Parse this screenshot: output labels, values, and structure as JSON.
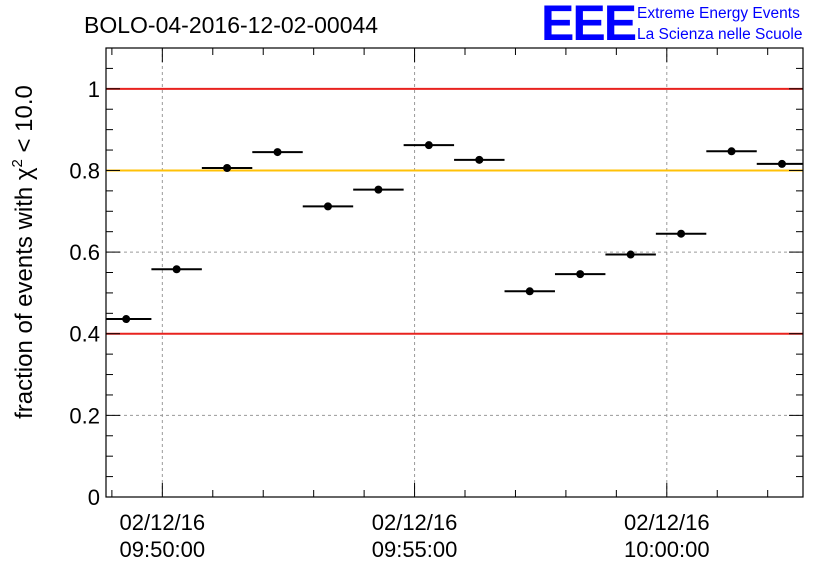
{
  "title": "BOLO-04-2016-12-02-00044",
  "logo": {
    "mark": "EEE",
    "line1": "Extreme Energy Events",
    "line2": "La Scienza nelle Scuole",
    "color": "#0000ff"
  },
  "colors": {
    "threshold_red": "#e8231f",
    "threshold_yellow": "#ffc107",
    "grid": "#9a9a9a",
    "marker": "#000000"
  },
  "chart_data": {
    "type": "scatter",
    "ylabel_main": "fraction of events with χ",
    "ylabel_sup": "2",
    "ylabel_tail": " < 10.0",
    "xlabel": "",
    "ylim": [
      0,
      1.1
    ],
    "xlim": [
      "09:48:53",
      "10:02:42"
    ],
    "yticks": [
      0,
      0.2,
      0.4,
      0.6,
      0.8,
      1
    ],
    "ytick_labels": [
      "0",
      "0.2",
      "0.4",
      "0.6",
      "0.8",
      "1"
    ],
    "xticks": [
      {
        "time": "09:50:00",
        "line1": "02/12/16",
        "line2": "09:50:00"
      },
      {
        "time": "09:55:00",
        "line1": "02/12/16",
        "line2": "09:55:00"
      },
      {
        "time": "10:00:00",
        "line1": "02/12/16",
        "line2": "10:00:00"
      }
    ],
    "bin_width_seconds": 60,
    "grid": true,
    "reference_lines": [
      {
        "y": 1.0,
        "color": "red"
      },
      {
        "y": 0.8,
        "color": "yellow"
      },
      {
        "y": 0.4,
        "color": "red"
      }
    ],
    "series": [
      {
        "points": [
          {
            "x": "09:49:17",
            "y": 0.436
          },
          {
            "x": "09:50:17",
            "y": 0.558
          },
          {
            "x": "09:51:17",
            "y": 0.806
          },
          {
            "x": "09:52:17",
            "y": 0.845
          },
          {
            "x": "09:53:17",
            "y": 0.712
          },
          {
            "x": "09:54:17",
            "y": 0.753
          },
          {
            "x": "09:55:17",
            "y": 0.862
          },
          {
            "x": "09:56:17",
            "y": 0.826
          },
          {
            "x": "09:57:17",
            "y": 0.504
          },
          {
            "x": "09:58:17",
            "y": 0.546
          },
          {
            "x": "09:59:17",
            "y": 0.594
          },
          {
            "x": "10:00:17",
            "y": 0.645
          },
          {
            "x": "10:01:17",
            "y": 0.847
          },
          {
            "x": "10:02:17",
            "y": 0.816
          }
        ]
      }
    ]
  }
}
